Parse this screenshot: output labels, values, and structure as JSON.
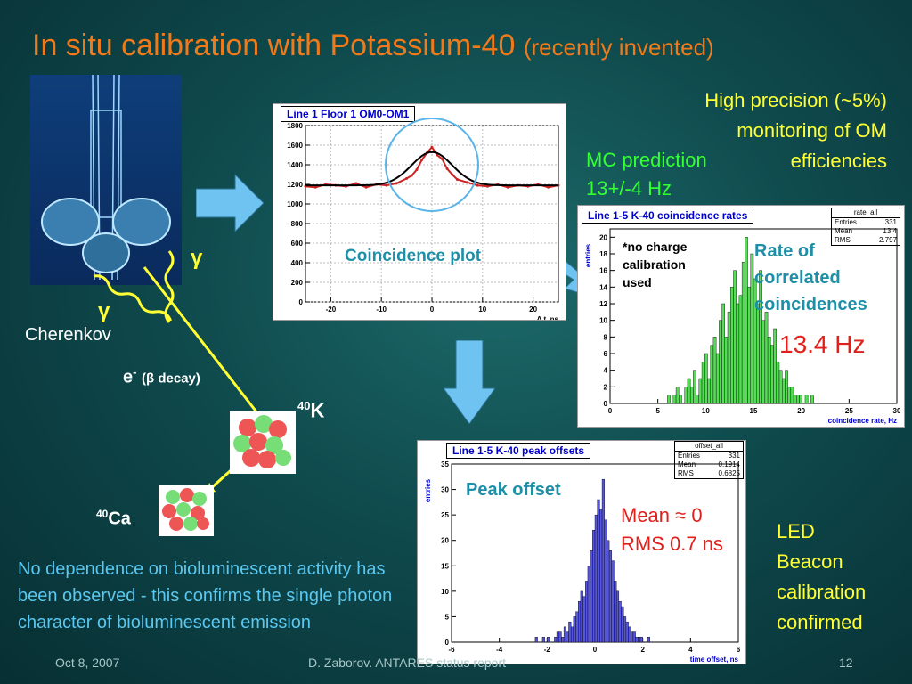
{
  "title": {
    "main": "In situ calibration with Potassium-40",
    "sub": "(recently invented)"
  },
  "precision": {
    "line1": "High precision (~5%)",
    "line2": "monitoring of OM",
    "line3": "efficiencies"
  },
  "mc": {
    "label": "MC prediction",
    "value": "13+/-4 Hz"
  },
  "labels": {
    "gamma": "γ",
    "cherenkov": "Cherenkov",
    "electron": "e",
    "electron_sup": "-",
    "beta_decay": "(β decay)",
    "k40_sup": "40",
    "k40": "K",
    "ca40_sup": "40",
    "ca40": "Ca"
  },
  "coincidence": {
    "panel_title": "Line 1 Floor 1 OM0-OM1",
    "overlay_label": "Coincidence plot",
    "xlabel": "Δ t, ns",
    "chart_data": {
      "type": "line",
      "title": "Line 1 Floor 1 OM0-OM1",
      "xlabel": "Δ t, ns",
      "xlim": [
        -25,
        25
      ],
      "ylim": [
        0,
        1800
      ],
      "xticks": [
        -20,
        -10,
        0,
        10,
        20
      ],
      "yticks": [
        0,
        200,
        400,
        600,
        800,
        1000,
        1200,
        1400,
        1600,
        1800
      ],
      "x": [
        -25,
        -23,
        -21,
        -19,
        -17,
        -15,
        -13,
        -11,
        -9,
        -7,
        -5,
        -4,
        -3,
        -2,
        -1,
        0,
        1,
        2,
        3,
        4,
        5,
        7,
        9,
        11,
        13,
        15,
        17,
        19,
        21,
        23,
        25
      ],
      "values": [
        1180,
        1170,
        1200,
        1190,
        1180,
        1210,
        1170,
        1200,
        1190,
        1210,
        1260,
        1290,
        1350,
        1450,
        1520,
        1580,
        1500,
        1460,
        1360,
        1300,
        1250,
        1220,
        1190,
        1180,
        1200,
        1170,
        1190,
        1180,
        1200,
        1170,
        1190
      ],
      "fit": {
        "type": "gaussian",
        "baseline": 1190,
        "amplitude": 340,
        "mean": 0,
        "sigma": 4
      }
    }
  },
  "rates": {
    "panel_title": "Line 1-5 K-40 coincidence rates",
    "stats": {
      "name": "rate_all",
      "rows": [
        [
          "Entries",
          "331"
        ],
        [
          "Mean",
          "13.4"
        ],
        [
          "RMS",
          "2.797"
        ]
      ]
    },
    "note": "*no charge calibration used",
    "overlay_label": "Rate of correlated coincidences",
    "big_value": "13.4 Hz",
    "ylabel": "entries",
    "xlabel": "coincidence rate, Hz",
    "chart_data": {
      "type": "bar",
      "title": "Line 1-5 K-40 coincidence rates",
      "xlabel": "coincidence rate, Hz",
      "ylabel": "entries",
      "xlim": [
        0,
        30
      ],
      "ylim": [
        0,
        21
      ],
      "xticks": [
        0,
        5,
        10,
        15,
        20,
        25,
        30
      ],
      "yticks": [
        0,
        2,
        4,
        6,
        8,
        10,
        12,
        14,
        16,
        18,
        20
      ],
      "bin_width": 0.3,
      "bin_start": 6.0,
      "values": [
        1,
        0,
        1,
        2,
        1,
        0,
        2,
        3,
        2,
        4,
        1,
        3,
        5,
        6,
        3,
        7,
        8,
        6,
        10,
        12,
        8,
        11,
        14,
        16,
        12,
        13,
        17,
        20,
        14,
        18,
        15,
        12,
        16,
        10,
        11,
        8,
        7,
        9,
        5,
        4,
        3,
        4,
        2,
        2,
        1,
        1,
        1,
        0,
        1,
        0,
        1
      ]
    }
  },
  "offsets": {
    "panel_title": "Line 1-5 K-40 peak offsets",
    "stats": {
      "name": "offset_all",
      "rows": [
        [
          "Entries",
          "331"
        ],
        [
          "Mean",
          "0.1914"
        ],
        [
          "RMS",
          "0.6825"
        ]
      ]
    },
    "overlay_label": "Peak offset",
    "mean_label": "Mean ≈ 0",
    "rms_label": "RMS 0.7 ns",
    "ylabel": "entries",
    "xlabel": "time offset, ns",
    "chart_data": {
      "type": "bar",
      "title": "Line 1-5 K-40 peak offsets",
      "xlabel": "time offset, ns",
      "ylabel": "entries",
      "xlim": [
        -6,
        6
      ],
      "ylim": [
        0,
        35
      ],
      "xticks": [
        -6,
        -4,
        -2,
        0,
        2,
        4,
        6
      ],
      "yticks": [
        0,
        5,
        10,
        15,
        20,
        25,
        30,
        35
      ],
      "bin_width": 0.1,
      "bin_start": -2.5,
      "values": [
        1,
        0,
        0,
        1,
        0,
        1,
        0,
        0,
        1,
        2,
        2,
        1,
        3,
        2,
        4,
        3,
        5,
        6,
        8,
        10,
        9,
        12,
        15,
        18,
        22,
        25,
        28,
        26,
        32,
        24,
        20,
        18,
        16,
        12,
        10,
        8,
        7,
        5,
        4,
        3,
        2,
        2,
        1,
        1,
        1,
        0,
        0,
        1
      ]
    }
  },
  "led": {
    "line1": "LED",
    "line2": "Beacon",
    "line3": "calibration",
    "line4": "confirmed"
  },
  "bio": {
    "text": "No dependence on bioluminescent activity has been observed - this confirms the single photon character of bioluminescent emission"
  },
  "footer": {
    "date": "Oct 8, 2007",
    "author": "D. Zaborov. ANTARES status report",
    "page": "12"
  },
  "colors": {
    "title": "#f07a1a",
    "highlight": "#ffff33",
    "mc": "#33ff33",
    "rates_bars": "#55dd55",
    "offset_bars": "#5555dd",
    "coincidence_hist": "#cc2222"
  }
}
